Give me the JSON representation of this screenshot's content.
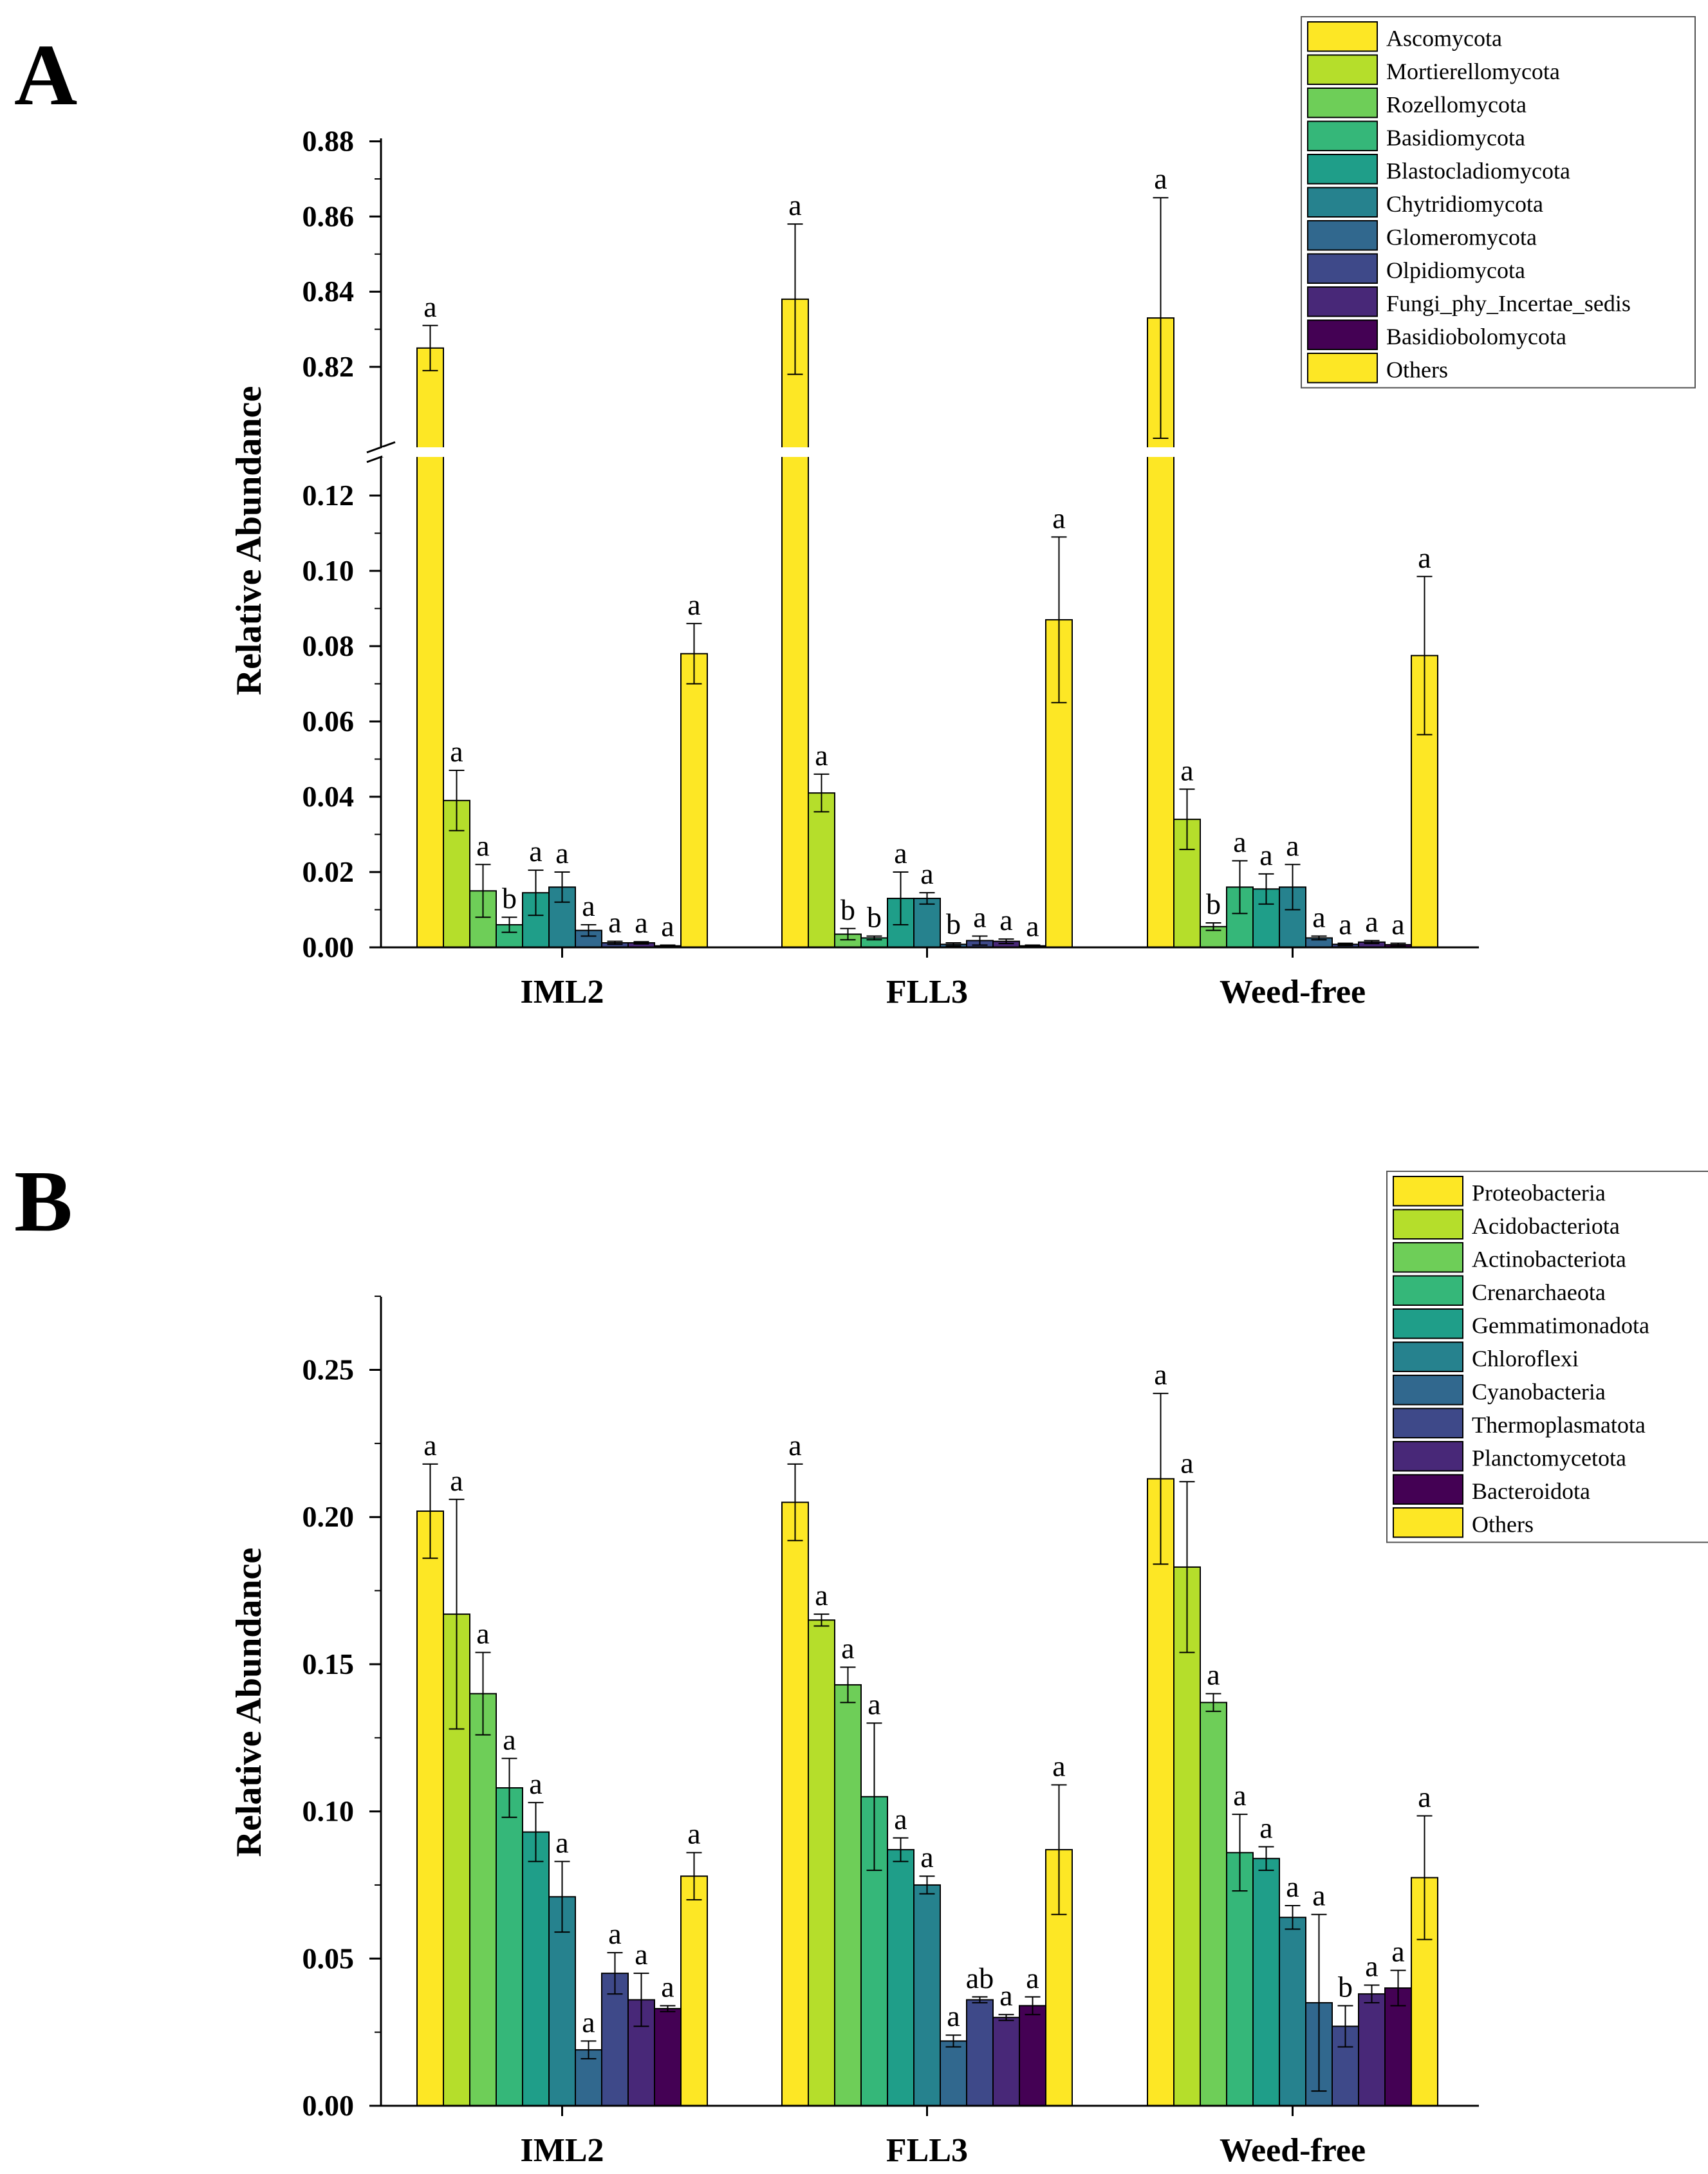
{
  "chart_data": [
    {
      "panel": "A",
      "type": "bar",
      "ylabel": "Relative Abundance",
      "ylim_lower": [
        0,
        0.13
      ],
      "ylim_upper": [
        0.8,
        0.88
      ],
      "yticks_lower": [
        "0.00",
        "0.02",
        "0.04",
        "0.06",
        "0.08",
        "0.10",
        "0.12"
      ],
      "yticks_upper": [
        "0.82",
        "0.84",
        "0.86",
        "0.88"
      ],
      "yticks_lower_values": [
        0,
        0.02,
        0.04,
        0.06,
        0.08,
        0.1,
        0.12
      ],
      "yticks_upper_values": [
        0.82,
        0.84,
        0.86,
        0.88
      ],
      "categories": [
        "IML2",
        "FLL3",
        "Weed-free"
      ],
      "series": [
        {
          "name": "Ascomycota",
          "color": "#fde725",
          "values": [
            0.825,
            0.838,
            0.833
          ],
          "errors": [
            0.006,
            0.02,
            0.032
          ],
          "letters": [
            "a",
            "a",
            "a"
          ]
        },
        {
          "name": "Mortierellomycota",
          "color": "#b5de2b",
          "values": [
            0.039,
            0.041,
            0.034
          ],
          "errors": [
            0.008,
            0.005,
            0.008
          ],
          "letters": [
            "a",
            "a",
            "a"
          ]
        },
        {
          "name": "Rozellomycota",
          "color": "#6ece58",
          "values": [
            0.015,
            0.0035,
            0.0055
          ],
          "errors": [
            0.007,
            0.0015,
            0.001
          ],
          "letters": [
            "a",
            "b",
            "b"
          ]
        },
        {
          "name": "Basidiomycota",
          "color": "#35b779",
          "values": [
            0.006,
            0.0025,
            0.016
          ],
          "errors": [
            0.002,
            0.0005,
            0.007
          ],
          "letters": [
            "b",
            "b",
            "a"
          ]
        },
        {
          "name": "Blastocladiomycota",
          "color": "#1f9e89",
          "values": [
            0.0145,
            0.013,
            0.0155
          ],
          "errors": [
            0.006,
            0.007,
            0.004
          ],
          "letters": [
            "a",
            "a",
            "a"
          ]
        },
        {
          "name": "Chytridiomycota",
          "color": "#26828e",
          "values": [
            0.016,
            0.013,
            0.016
          ],
          "errors": [
            0.004,
            0.0015,
            0.006
          ],
          "letters": [
            "a",
            "a",
            "a"
          ]
        },
        {
          "name": "Glomeromycota",
          "color": "#31688e",
          "values": [
            0.0045,
            0.0008,
            0.0025
          ],
          "errors": [
            0.0015,
            0.0004,
            0.0005
          ],
          "letters": [
            "a",
            "b",
            "a"
          ]
        },
        {
          "name": "Olpidiomycota",
          "color": "#3e4989",
          "values": [
            0.0012,
            0.0018,
            0.0008
          ],
          "errors": [
            0.0004,
            0.0012,
            0.0003
          ],
          "letters": [
            "a",
            "a",
            "a"
          ]
        },
        {
          "name": "Fungi_phy_Incertae_sedis",
          "color": "#482878",
          "values": [
            0.0012,
            0.0016,
            0.0014
          ],
          "errors": [
            0.0003,
            0.0006,
            0.0004
          ],
          "letters": [
            "a",
            "a",
            "a"
          ]
        },
        {
          "name": "Basidiobolomycota",
          "color": "#440154",
          "values": [
            0.0004,
            0.0004,
            0.0007
          ],
          "errors": [
            0.0002,
            0.0002,
            0.0004
          ],
          "letters": [
            "a",
            "a",
            "a"
          ]
        },
        {
          "name": "Others",
          "color": "#fde725",
          "values": [
            0.078,
            0.087,
            0.0775
          ],
          "errors": [
            0.008,
            0.022,
            0.021
          ],
          "letters": [
            "a",
            "a",
            "a"
          ]
        }
      ]
    },
    {
      "panel": "B",
      "type": "bar",
      "ylabel": "Relative Abundance",
      "ylim": [
        0,
        0.275
      ],
      "yticks": [
        "0.00",
        "0.05",
        "0.10",
        "0.15",
        "0.20",
        "0.25"
      ],
      "yticks_values": [
        0,
        0.05,
        0.1,
        0.15,
        0.2,
        0.25
      ],
      "categories": [
        "IML2",
        "FLL3",
        "Weed-free"
      ],
      "series": [
        {
          "name": "Proteobacteria",
          "color": "#fde725",
          "values": [
            0.202,
            0.205,
            0.213
          ],
          "errors": [
            0.016,
            0.013,
            0.029
          ],
          "letters": [
            "a",
            "a",
            "a"
          ]
        },
        {
          "name": "Acidobacteriota",
          "color": "#b5de2b",
          "values": [
            0.167,
            0.165,
            0.183
          ],
          "errors": [
            0.039,
            0.002,
            0.029
          ],
          "letters": [
            "a",
            "a",
            "a"
          ]
        },
        {
          "name": "Actinobacteriota",
          "color": "#6ece58",
          "values": [
            0.14,
            0.143,
            0.137
          ],
          "errors": [
            0.014,
            0.006,
            0.003
          ],
          "letters": [
            "a",
            "a",
            "a"
          ]
        },
        {
          "name": "Crenarchaeota",
          "color": "#35b779",
          "values": [
            0.108,
            0.105,
            0.086
          ],
          "errors": [
            0.01,
            0.025,
            0.013
          ],
          "letters": [
            "a",
            "a",
            "a"
          ]
        },
        {
          "name": "Gemmatimonadota",
          "color": "#1f9e89",
          "values": [
            0.093,
            0.087,
            0.084
          ],
          "errors": [
            0.01,
            0.004,
            0.004
          ],
          "letters": [
            "a",
            "a",
            "a"
          ]
        },
        {
          "name": "Chloroflexi",
          "color": "#26828e",
          "values": [
            0.071,
            0.075,
            0.064
          ],
          "errors": [
            0.012,
            0.003,
            0.004
          ],
          "letters": [
            "a",
            "a",
            "a"
          ]
        },
        {
          "name": "Cyanobacteria",
          "color": "#31688e",
          "values": [
            0.019,
            0.022,
            0.035
          ],
          "errors": [
            0.003,
            0.002,
            0.03
          ],
          "letters": [
            "a",
            "a",
            "a"
          ]
        },
        {
          "name": "Thermoplasmatota",
          "color": "#3e4989",
          "values": [
            0.045,
            0.036,
            0.027
          ],
          "errors": [
            0.007,
            0.001,
            0.007
          ],
          "letters": [
            "a",
            "ab",
            "b"
          ]
        },
        {
          "name": "Planctomycetota",
          "color": "#482878",
          "values": [
            0.036,
            0.03,
            0.038
          ],
          "errors": [
            0.009,
            0.001,
            0.003
          ],
          "letters": [
            "a",
            "a",
            "a"
          ]
        },
        {
          "name": "Bacteroidota",
          "color": "#440154",
          "values": [
            0.033,
            0.034,
            0.04
          ],
          "errors": [
            0.001,
            0.003,
            0.006
          ],
          "letters": [
            "a",
            "a",
            "a"
          ]
        },
        {
          "name": "Others",
          "color": "#fde725",
          "values": [
            0.078,
            0.087,
            0.0775
          ],
          "errors": [
            0.008,
            0.022,
            0.021
          ],
          "letters": [
            "a",
            "a",
            "a"
          ]
        }
      ]
    }
  ]
}
